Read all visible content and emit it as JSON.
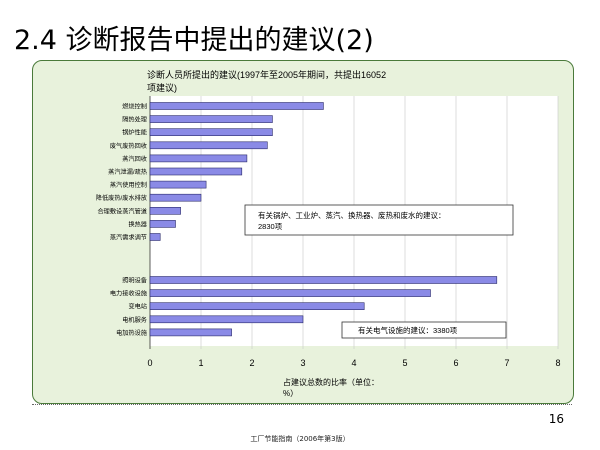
{
  "slide": {
    "title": "2.4 诊断报告中提出的建议(2)",
    "page_number": "16",
    "footer": "工厂节能指南（2006年第3版）"
  },
  "chart_data": {
    "type": "bar",
    "orientation": "horizontal",
    "title_line1": "诊断人员所提出的建议(1997年至2005年期间，共提出16052",
    "title_line2": "项建议)",
    "xlabel_line1": "占建议总数的比率（单位：",
    "xlabel_line2": "%）",
    "xlim": [
      0,
      8
    ],
    "xticks": [
      "0",
      "1",
      "2",
      "3",
      "4",
      "5",
      "6",
      "7",
      "8"
    ],
    "bar_color": "#8a8ae6",
    "groups": [
      {
        "categories": [
          "燃烧控制",
          "隔热处理",
          "锅炉性能",
          "废气废热回收",
          "蒸汽回收",
          "蒸汽泄漏/疏热",
          "蒸汽使用控制",
          "降低废热/废水排放",
          "合理敷设蒸汽管道",
          "换热器",
          "蒸汽需求调节"
        ],
        "values": [
          3.4,
          2.4,
          2.4,
          2.3,
          1.9,
          1.8,
          1.1,
          1.0,
          0.6,
          0.5,
          0.2
        ]
      },
      {
        "categories": [
          "照明设备",
          "电力接收设施",
          "变电站",
          "电机服务",
          "电加热设施"
        ],
        "values": [
          6.8,
          5.5,
          4.2,
          3.0,
          1.6
        ]
      }
    ],
    "annotations": [
      {
        "line1": "有关锅炉、工业炉、蒸汽、换热器、废热和废水的建议：",
        "line2": "2830项"
      },
      {
        "line1": "有关电气设施的建议：3380项"
      }
    ]
  }
}
